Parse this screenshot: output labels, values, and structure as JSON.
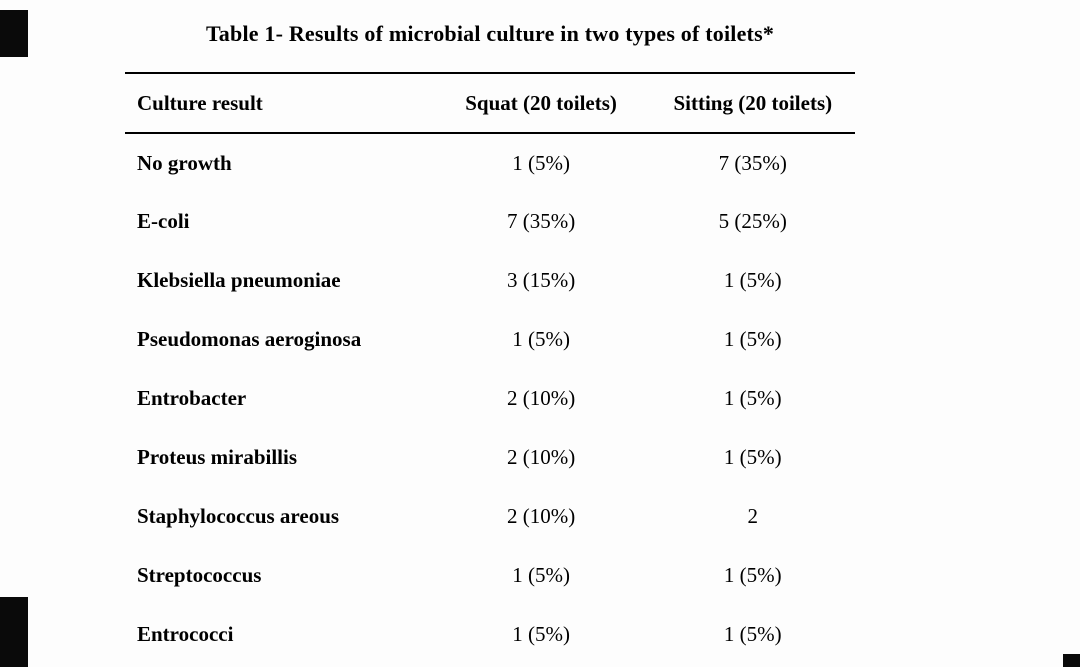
{
  "page": {
    "title": "Table 1- Results of microbial culture in two types of toilets*"
  },
  "table": {
    "headers": [
      "Culture result",
      "Squat (20 toilets)",
      "Sitting (20 toilets)"
    ],
    "rows": [
      {
        "label": "No growth",
        "squat": "1 (5%)",
        "sitting": "7 (35%)"
      },
      {
        "label": "E-coli",
        "squat": "7 (35%)",
        "sitting": "5 (25%)"
      },
      {
        "label": "Klebsiella pneumoniae",
        "squat": "3 (15%)",
        "sitting": "1 (5%)"
      },
      {
        "label": "Pseudomonas aeroginosa",
        "squat": "1 (5%)",
        "sitting": "1 (5%)"
      },
      {
        "label": "Entrobacter",
        "squat": "2 (10%)",
        "sitting": "1 (5%)"
      },
      {
        "label": "Proteus mirabillis",
        "squat": "2 (10%)",
        "sitting": "1 (5%)"
      },
      {
        "label": "Staphylococcus areous",
        "squat": "2 (10%)",
        "sitting": "2"
      },
      {
        "label": "Streptococcus",
        "squat": "1 (5%)",
        "sitting": "1 (5%)"
      },
      {
        "label": "Entrococci",
        "squat": "1 (5%)",
        "sitting": "1 (5%)"
      }
    ]
  }
}
